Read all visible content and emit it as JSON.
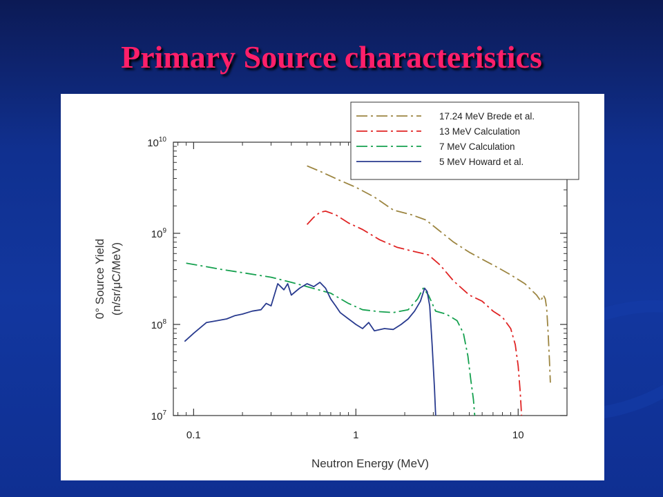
{
  "slide": {
    "title": "Primary Source characteristics"
  },
  "chart_data": {
    "type": "line",
    "xlabel": "Neutron Energy (MeV)",
    "ylabel": [
      "0° Source Yield",
      "(n/sr/μC/MeV)"
    ],
    "xscale": "log",
    "yscale": "log",
    "xlim": [
      0.075,
      20
    ],
    "ylim": [
      10000000,
      10000000000
    ],
    "x_ticks": [
      {
        "value": 0.1,
        "label": "0.1"
      },
      {
        "value": 1,
        "label": "1"
      },
      {
        "value": 10,
        "label": "10"
      }
    ],
    "y_ticks": [
      {
        "value": 10000000,
        "base": "10",
        "exp": "7"
      },
      {
        "value": 100000000,
        "base": "10",
        "exp": "8"
      },
      {
        "value": 1000000000,
        "base": "10",
        "exp": "9"
      },
      {
        "value": 10000000000,
        "base": "10",
        "exp": "10"
      }
    ],
    "legend_position": "top-right",
    "series": [
      {
        "name": "17.24 MeV Brede et al.",
        "color": "#9c8540",
        "dash": "16 5 3 5",
        "points": [
          [
            0.5,
            5500000000.0
          ],
          [
            0.6,
            4800000000.0
          ],
          [
            0.8,
            3800000000.0
          ],
          [
            1,
            3200000000.0
          ],
          [
            1.3,
            2500000000.0
          ],
          [
            1.7,
            1800000000.0
          ],
          [
            2.2,
            1600000000.0
          ],
          [
            2.7,
            1400000000.0
          ],
          [
            3.2,
            1100000000.0
          ],
          [
            4,
            800000000.0
          ],
          [
            5,
            620000000.0
          ],
          [
            6,
            520000000.0
          ],
          [
            7.5,
            420000000.0
          ],
          [
            9,
            350000000.0
          ],
          [
            11,
            280000000.0
          ],
          [
            13,
            210000000.0
          ],
          [
            13.8,
            180000000.0
          ],
          [
            14.3,
            210000000.0
          ],
          [
            14.7,
            190000000.0
          ],
          [
            15,
            150000000.0
          ],
          [
            15.3,
            80000000.0
          ],
          [
            15.6,
            40000000.0
          ],
          [
            15.8,
            23000000.0
          ]
        ]
      },
      {
        "name": "13 MeV Calculation",
        "color": "#e02424",
        "dash": "16 5 3 5",
        "points": [
          [
            0.5,
            1250000000.0
          ],
          [
            0.55,
            1500000000.0
          ],
          [
            0.6,
            1700000000.0
          ],
          [
            0.65,
            1750000000.0
          ],
          [
            0.75,
            1600000000.0
          ],
          [
            0.9,
            1300000000.0
          ],
          [
            1.1,
            1100000000.0
          ],
          [
            1.4,
            850000000.0
          ],
          [
            1.8,
            700000000.0
          ],
          [
            2.3,
            630000000.0
          ],
          [
            2.8,
            580000000.0
          ],
          [
            3.3,
            450000000.0
          ],
          [
            4,
            300000000.0
          ],
          [
            5,
            210000000.0
          ],
          [
            6,
            180000000.0
          ],
          [
            7,
            140000000.0
          ],
          [
            8,
            120000000.0
          ],
          [
            9,
            90000000.0
          ],
          [
            9.6,
            60000000.0
          ],
          [
            10,
            35000000.0
          ],
          [
            10.3,
            18000000.0
          ],
          [
            10.5,
            10000000.0
          ]
        ]
      },
      {
        "name": "7 MeV Calculation",
        "color": "#14a04e",
        "dash": "16 5 3 5",
        "points": [
          [
            0.09,
            470000000.0
          ],
          [
            0.12,
            430000000.0
          ],
          [
            0.15,
            400000000.0
          ],
          [
            0.2,
            370000000.0
          ],
          [
            0.3,
            330000000.0
          ],
          [
            0.4,
            290000000.0
          ],
          [
            0.5,
            260000000.0
          ],
          [
            0.7,
            220000000.0
          ],
          [
            0.9,
            170000000.0
          ],
          [
            1.1,
            145000000.0
          ],
          [
            1.4,
            138000000.0
          ],
          [
            1.7,
            135000000.0
          ],
          [
            2.1,
            145000000.0
          ],
          [
            2.4,
            190000000.0
          ],
          [
            2.6,
            250000000.0
          ],
          [
            2.8,
            210000000.0
          ],
          [
            3.1,
            140000000.0
          ],
          [
            3.6,
            130000000.0
          ],
          [
            4.2,
            110000000.0
          ],
          [
            4.6,
            80000000.0
          ],
          [
            4.9,
            45000000.0
          ],
          [
            5.1,
            25000000.0
          ],
          [
            5.3,
            15000000.0
          ],
          [
            5.4,
            10000000.0
          ]
        ]
      },
      {
        "name": "5 MeV Howard et al.",
        "color": "#283a8e",
        "dash": "",
        "points": [
          [
            0.088,
            65000000.0
          ],
          [
            0.1,
            80000000.0
          ],
          [
            0.12,
            105000000.0
          ],
          [
            0.14,
            110000000.0
          ],
          [
            0.16,
            115000000.0
          ],
          [
            0.18,
            125000000.0
          ],
          [
            0.2,
            130000000.0
          ],
          [
            0.23,
            140000000.0
          ],
          [
            0.26,
            145000000.0
          ],
          [
            0.28,
            170000000.0
          ],
          [
            0.3,
            160000000.0
          ],
          [
            0.33,
            280000000.0
          ],
          [
            0.36,
            240000000.0
          ],
          [
            0.38,
            280000000.0
          ],
          [
            0.4,
            210000000.0
          ],
          [
            0.45,
            250000000.0
          ],
          [
            0.5,
            280000000.0
          ],
          [
            0.55,
            260000000.0
          ],
          [
            0.6,
            290000000.0
          ],
          [
            0.65,
            250000000.0
          ],
          [
            0.7,
            190000000.0
          ],
          [
            0.75,
            160000000.0
          ],
          [
            0.8,
            135000000.0
          ],
          [
            0.9,
            115000000.0
          ],
          [
            1,
            100000000.0
          ],
          [
            1.1,
            90000000.0
          ],
          [
            1.2,
            105000000.0
          ],
          [
            1.3,
            85000000.0
          ],
          [
            1.5,
            90000000.0
          ],
          [
            1.7,
            88000000.0
          ],
          [
            1.9,
            100000000.0
          ],
          [
            2.1,
            115000000.0
          ],
          [
            2.3,
            140000000.0
          ],
          [
            2.5,
            180000000.0
          ],
          [
            2.65,
            250000000.0
          ],
          [
            2.75,
            230000000.0
          ],
          [
            2.85,
            160000000.0
          ],
          [
            2.95,
            60000000.0
          ],
          [
            3.05,
            20000000.0
          ],
          [
            3.1,
            10000000.0
          ]
        ]
      }
    ]
  }
}
